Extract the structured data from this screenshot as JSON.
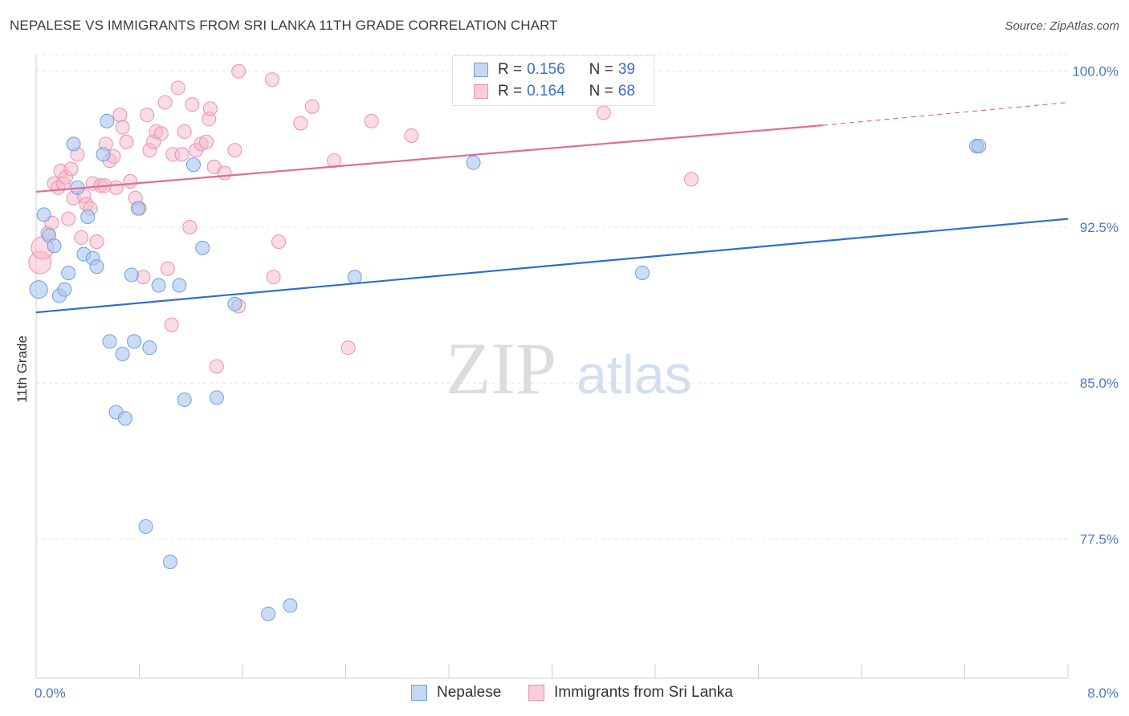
{
  "title": "NEPALESE VS IMMIGRANTS FROM SRI LANKA 11TH GRADE CORRELATION CHART",
  "source": "Source: ZipAtlas.com",
  "watermark": {
    "zip": "ZIP",
    "atlas": "atlas"
  },
  "legend": {
    "rows": [
      {
        "r_label": "R =",
        "r_value": "0.156",
        "n_label": "N =",
        "n_value": "39"
      },
      {
        "r_label": "R =",
        "r_value": "0.164",
        "n_label": "N =",
        "n_value": "68"
      }
    ]
  },
  "colors": {
    "nepalese_fill": "#a9c6ef",
    "nepalese_stroke": "#6f9ee0",
    "nepalese_line": "#2e6fcc",
    "srilanka_fill": "#f7b8cb",
    "srilanka_stroke": "#ee8fae",
    "srilanka_line": "#e26a93"
  },
  "chart_data": {
    "type": "scatter",
    "title": "NEPALESE VS IMMIGRANTS FROM SRI LANKA 11TH GRADE CORRELATION CHART",
    "xlabel": "",
    "ylabel": "11th Grade",
    "xlim": [
      0.0,
      8.0
    ],
    "ylim": [
      70.8,
      100.8
    ],
    "x_tick_labels": [
      "0.0%",
      "8.0%"
    ],
    "y_ticks": [
      77.5,
      85.0,
      92.5,
      100.0
    ],
    "y_tick_labels": [
      "77.5%",
      "85.0%",
      "92.5%",
      "100.0%"
    ],
    "grid": true,
    "series": [
      {
        "name": "Nepalese",
        "r": 0.156,
        "n": 39,
        "trend": {
          "x": [
            0.0,
            8.0
          ],
          "y": [
            88.4,
            92.9
          ]
        },
        "points": [
          {
            "x": 0.02,
            "y": 89.5
          },
          {
            "x": 0.06,
            "y": 93.1
          },
          {
            "x": 0.1,
            "y": 92.1
          },
          {
            "x": 0.14,
            "y": 91.6
          },
          {
            "x": 0.18,
            "y": 89.2
          },
          {
            "x": 0.22,
            "y": 89.5
          },
          {
            "x": 0.25,
            "y": 90.3
          },
          {
            "x": 0.29,
            "y": 96.5
          },
          {
            "x": 0.32,
            "y": 94.4
          },
          {
            "x": 0.37,
            "y": 91.2
          },
          {
            "x": 0.4,
            "y": 93.0
          },
          {
            "x": 0.44,
            "y": 91.0
          },
          {
            "x": 0.47,
            "y": 90.6
          },
          {
            "x": 0.52,
            "y": 96.0
          },
          {
            "x": 0.55,
            "y": 97.6
          },
          {
            "x": 0.57,
            "y": 87.0
          },
          {
            "x": 0.62,
            "y": 83.6
          },
          {
            "x": 0.67,
            "y": 86.4
          },
          {
            "x": 0.69,
            "y": 83.3
          },
          {
            "x": 0.74,
            "y": 90.2
          },
          {
            "x": 0.76,
            "y": 87.0
          },
          {
            "x": 0.79,
            "y": 93.4
          },
          {
            "x": 0.85,
            "y": 78.1
          },
          {
            "x": 0.88,
            "y": 86.7
          },
          {
            "x": 0.95,
            "y": 89.7
          },
          {
            "x": 1.04,
            "y": 76.4
          },
          {
            "x": 1.11,
            "y": 89.7
          },
          {
            "x": 1.15,
            "y": 84.2
          },
          {
            "x": 1.22,
            "y": 95.5
          },
          {
            "x": 1.29,
            "y": 91.5
          },
          {
            "x": 1.4,
            "y": 84.3
          },
          {
            "x": 1.54,
            "y": 88.8
          },
          {
            "x": 1.8,
            "y": 73.9
          },
          {
            "x": 1.97,
            "y": 74.3
          },
          {
            "x": 2.47,
            "y": 90.1
          },
          {
            "x": 3.39,
            "y": 95.6
          },
          {
            "x": 4.7,
            "y": 90.3
          },
          {
            "x": 7.29,
            "y": 96.4
          },
          {
            "x": 7.31,
            "y": 96.4
          }
        ]
      },
      {
        "name": "Immigrants from Sri Lanka",
        "r": 0.164,
        "n": 68,
        "trend": {
          "x": [
            0.0,
            6.1
          ],
          "y": [
            94.2,
            97.4
          ]
        },
        "trend_dashed": {
          "x": [
            6.1,
            8.0
          ],
          "y": [
            97.4,
            98.5
          ]
        },
        "points": [
          {
            "x": 0.03,
            "y": 90.8
          },
          {
            "x": 0.05,
            "y": 91.5
          },
          {
            "x": 0.09,
            "y": 92.2
          },
          {
            "x": 0.12,
            "y": 92.7
          },
          {
            "x": 0.14,
            "y": 94.6
          },
          {
            "x": 0.17,
            "y": 94.4
          },
          {
            "x": 0.19,
            "y": 95.2
          },
          {
            "x": 0.21,
            "y": 94.6
          },
          {
            "x": 0.23,
            "y": 94.9
          },
          {
            "x": 0.25,
            "y": 92.9
          },
          {
            "x": 0.27,
            "y": 95.3
          },
          {
            "x": 0.29,
            "y": 93.9
          },
          {
            "x": 0.32,
            "y": 96.0
          },
          {
            "x": 0.35,
            "y": 92.0
          },
          {
            "x": 0.37,
            "y": 94.0
          },
          {
            "x": 0.39,
            "y": 93.6
          },
          {
            "x": 0.42,
            "y": 93.4
          },
          {
            "x": 0.44,
            "y": 94.6
          },
          {
            "x": 0.47,
            "y": 91.8
          },
          {
            "x": 0.5,
            "y": 94.5
          },
          {
            "x": 0.53,
            "y": 94.5
          },
          {
            "x": 0.54,
            "y": 96.5
          },
          {
            "x": 0.57,
            "y": 95.7
          },
          {
            "x": 0.6,
            "y": 95.9
          },
          {
            "x": 0.62,
            "y": 94.4
          },
          {
            "x": 0.65,
            "y": 97.9
          },
          {
            "x": 0.67,
            "y": 97.3
          },
          {
            "x": 0.7,
            "y": 96.6
          },
          {
            "x": 0.73,
            "y": 94.7
          },
          {
            "x": 0.77,
            "y": 93.9
          },
          {
            "x": 0.8,
            "y": 93.4
          },
          {
            "x": 0.83,
            "y": 90.1
          },
          {
            "x": 0.86,
            "y": 97.9
          },
          {
            "x": 0.88,
            "y": 96.2
          },
          {
            "x": 0.91,
            "y": 96.6
          },
          {
            "x": 0.93,
            "y": 97.1
          },
          {
            "x": 0.97,
            "y": 97.0
          },
          {
            "x": 1.0,
            "y": 98.5
          },
          {
            "x": 1.02,
            "y": 90.5
          },
          {
            "x": 1.05,
            "y": 87.8
          },
          {
            "x": 1.06,
            "y": 96.0
          },
          {
            "x": 1.1,
            "y": 99.2
          },
          {
            "x": 1.13,
            "y": 96.0
          },
          {
            "x": 1.15,
            "y": 97.1
          },
          {
            "x": 1.19,
            "y": 92.5
          },
          {
            "x": 1.21,
            "y": 98.4
          },
          {
            "x": 1.24,
            "y": 96.2
          },
          {
            "x": 1.28,
            "y": 96.5
          },
          {
            "x": 1.32,
            "y": 96.6
          },
          {
            "x": 1.34,
            "y": 97.7
          },
          {
            "x": 1.35,
            "y": 98.2
          },
          {
            "x": 1.38,
            "y": 95.4
          },
          {
            "x": 1.4,
            "y": 85.8
          },
          {
            "x": 1.46,
            "y": 95.1
          },
          {
            "x": 1.54,
            "y": 96.2
          },
          {
            "x": 1.57,
            "y": 88.7
          },
          {
            "x": 1.57,
            "y": 100.0
          },
          {
            "x": 1.83,
            "y": 99.6
          },
          {
            "x": 1.84,
            "y": 90.1
          },
          {
            "x": 1.88,
            "y": 91.8
          },
          {
            "x": 2.05,
            "y": 97.5
          },
          {
            "x": 2.14,
            "y": 98.3
          },
          {
            "x": 2.31,
            "y": 95.7
          },
          {
            "x": 2.42,
            "y": 86.7
          },
          {
            "x": 2.6,
            "y": 97.6
          },
          {
            "x": 2.91,
            "y": 96.9
          },
          {
            "x": 4.4,
            "y": 98.0
          },
          {
            "x": 5.08,
            "y": 94.8
          }
        ]
      }
    ]
  },
  "bottom_legend": [
    {
      "label": "Nepalese"
    },
    {
      "label": "Immigrants from Sri Lanka"
    }
  ]
}
